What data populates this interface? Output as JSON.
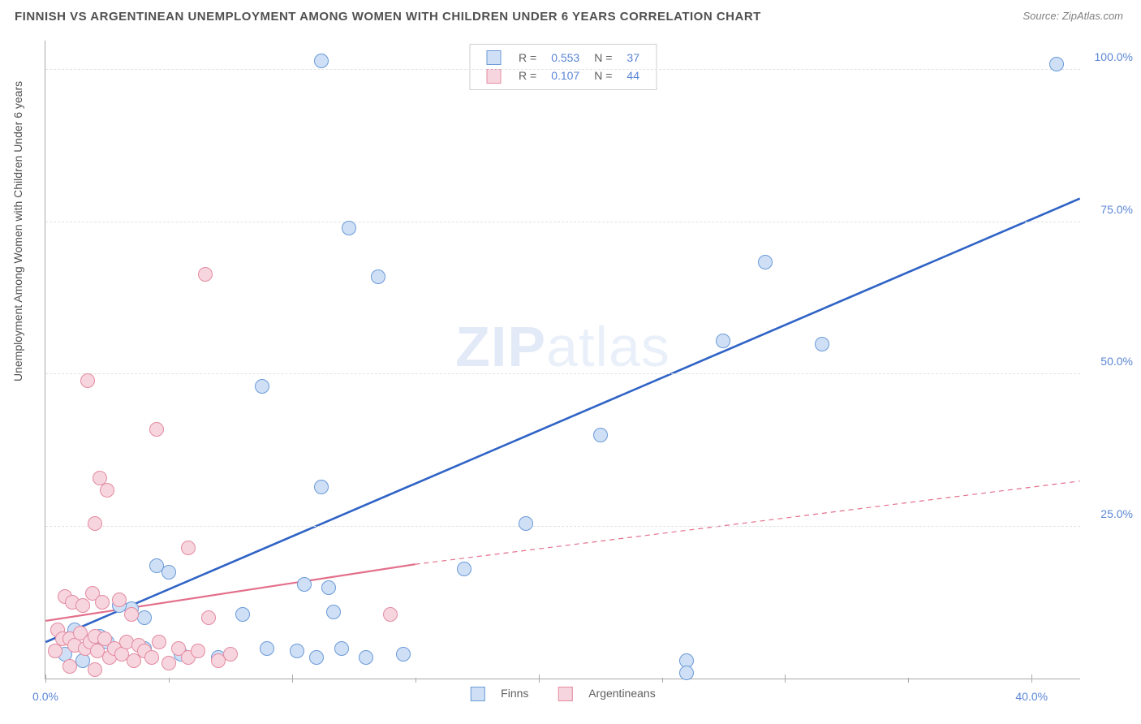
{
  "title": "FINNISH VS ARGENTINEAN UNEMPLOYMENT AMONG WOMEN WITH CHILDREN UNDER 6 YEARS CORRELATION CHART",
  "source": "Source: ZipAtlas.com",
  "ylabel": "Unemployment Among Women with Children Under 6 years",
  "watermark_a": "ZIP",
  "watermark_b": "atlas",
  "chart": {
    "type": "scatter-with-regression",
    "xlim": [
      0,
      42
    ],
    "ylim": [
      0,
      105
    ],
    "xtick_step": 10,
    "xtick_labels": [
      "0.0%",
      "",
      "",
      "",
      "40.0%"
    ],
    "minor_xticks": [
      5,
      15,
      20,
      25,
      30,
      35
    ],
    "ytick_step": 25,
    "ytick_labels": [
      "",
      "25.0%",
      "50.0%",
      "75.0%",
      "100.0%"
    ],
    "grid_color": "#e2e2e2",
    "axis_color": "#aaaaaa",
    "background": "#ffffff",
    "tick_label_color": "#5b86d6",
    "point_radius": 9,
    "point_border_width": 1.2,
    "series": [
      {
        "name": "Finns",
        "label": "Finns",
        "fill": "#cfe0f6",
        "stroke": "#6a9ad8",
        "line_color": "#2f63c6",
        "line_width": 2.6,
        "R_label": "R =",
        "R": "0.553",
        "N_label": "N =",
        "N": "37",
        "regression": {
          "x1": 0,
          "y1": 6,
          "x2": 42,
          "y2": 79
        },
        "points": [
          [
            11.2,
            101.5
          ],
          [
            41.0,
            101.0
          ],
          [
            12.3,
            74.0
          ],
          [
            13.5,
            66.0
          ],
          [
            29.2,
            68.5
          ],
          [
            8.8,
            48.0
          ],
          [
            27.5,
            55.5
          ],
          [
            31.5,
            55.0
          ],
          [
            11.2,
            31.5
          ],
          [
            22.5,
            40.0
          ],
          [
            19.5,
            25.5
          ],
          [
            4.5,
            18.5
          ],
          [
            10.5,
            15.5
          ],
          [
            11.5,
            15.0
          ],
          [
            17.0,
            18.0
          ],
          [
            11.7,
            11.0
          ],
          [
            8.0,
            10.5
          ],
          [
            4.0,
            10.0
          ],
          [
            3.5,
            11.5
          ],
          [
            1.2,
            8.0
          ],
          [
            2.5,
            6.0
          ],
          [
            4.0,
            5.0
          ],
          [
            5.5,
            4.0
          ],
          [
            7.0,
            3.5
          ],
          [
            9.0,
            5.0
          ],
          [
            10.2,
            4.5
          ],
          [
            11.0,
            3.5
          ],
          [
            12.0,
            5.0
          ],
          [
            13.0,
            3.5
          ],
          [
            14.5,
            4.0
          ],
          [
            0.8,
            4.0
          ],
          [
            1.5,
            3.0
          ],
          [
            2.2,
            7.0
          ],
          [
            5.0,
            17.5
          ],
          [
            26.0,
            3.0
          ],
          [
            26.0,
            1.0
          ],
          [
            3.0,
            12.0
          ]
        ]
      },
      {
        "name": "Argentineans",
        "label": "Argentineans",
        "fill": "#f7d5de",
        "stroke": "#e38aa0",
        "line_color": "#e36f8b",
        "line_width": 2.2,
        "R_label": "R =",
        "R": "0.107",
        "N_label": "N =",
        "N": "44",
        "regression_solid": {
          "x1": 0,
          "y1": 9.5,
          "x2": 15,
          "y2": 18.8
        },
        "regression_dashed": {
          "x1": 15,
          "y1": 18.8,
          "x2": 42,
          "y2": 32.5
        },
        "points": [
          [
            6.5,
            66.5
          ],
          [
            1.7,
            49.0
          ],
          [
            4.5,
            41.0
          ],
          [
            2.2,
            33.0
          ],
          [
            2.5,
            31.0
          ],
          [
            2.0,
            25.5
          ],
          [
            5.8,
            21.5
          ],
          [
            0.8,
            13.5
          ],
          [
            1.1,
            12.5
          ],
          [
            1.5,
            12.0
          ],
          [
            1.9,
            14.0
          ],
          [
            2.3,
            12.5
          ],
          [
            3.0,
            13.0
          ],
          [
            3.5,
            10.5
          ],
          [
            0.5,
            8.0
          ],
          [
            0.7,
            6.5
          ],
          [
            1.0,
            6.5
          ],
          [
            1.2,
            5.5
          ],
          [
            1.4,
            7.5
          ],
          [
            1.6,
            5.0
          ],
          [
            1.8,
            6.0
          ],
          [
            2.0,
            7.0
          ],
          [
            2.1,
            4.5
          ],
          [
            2.4,
            6.5
          ],
          [
            2.6,
            3.5
          ],
          [
            2.8,
            5.0
          ],
          [
            3.1,
            4.0
          ],
          [
            3.3,
            6.0
          ],
          [
            3.6,
            3.0
          ],
          [
            3.8,
            5.5
          ],
          [
            4.0,
            4.5
          ],
          [
            4.3,
            3.5
          ],
          [
            4.6,
            6.0
          ],
          [
            5.0,
            2.5
          ],
          [
            5.4,
            5.0
          ],
          [
            5.8,
            3.5
          ],
          [
            6.2,
            4.5
          ],
          [
            6.6,
            10.0
          ],
          [
            7.0,
            3.0
          ],
          [
            1.0,
            2.0
          ],
          [
            2.0,
            1.5
          ],
          [
            0.4,
            4.5
          ],
          [
            14.0,
            10.5
          ],
          [
            7.5,
            4.0
          ]
        ]
      }
    ]
  }
}
